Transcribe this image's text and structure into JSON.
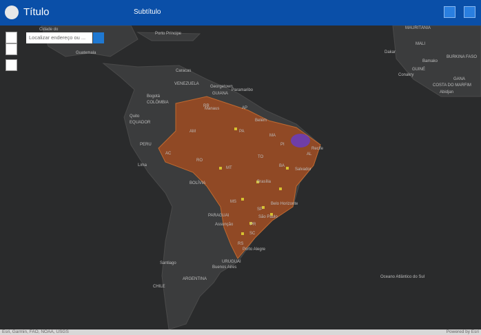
{
  "header": {
    "title": "Título",
    "subtitle": "Subtítulo"
  },
  "search": {
    "placeholder": "Localizar endereço ou ..."
  },
  "map_labels": [
    "Cidade do",
    "Porto Príncipe",
    "Guatemala",
    "Caracas",
    "VENEZUELA",
    "Georgetown",
    "GUIANA",
    "Paramaribo",
    "Bogotá",
    "COLÔMBIA",
    "Quito",
    "EQUADOR",
    "PERU",
    "Lima",
    "BOLÍVIA",
    "Manaus",
    "Belém",
    "Recife",
    "Salvador",
    "Brasília",
    "Belo Horizonte",
    "São Paulo",
    "Porto Alegre",
    "Assunção",
    "PARAGUAI",
    "Santiago",
    "CHILE",
    "Buenos Aires",
    "ARGENTINA",
    "URUGUAI",
    "Oceano Atlântico do Sul",
    "MAURITÂNIA",
    "MALI",
    "Dakar",
    "Bamako",
    "BURKINA FASO",
    "GUINÉ",
    "Conakry",
    "COSTA DO MARFIM",
    "GANA",
    "Abidjan",
    "RR",
    "AP",
    "AM",
    "PA",
    "MA",
    "AC",
    "RO",
    "MT",
    "TO",
    "BA",
    "PI",
    "AL",
    "MS",
    "SP",
    "PR",
    "SC",
    "RS"
  ],
  "footer": {
    "attribution": "Esri, Garmin, FAO, NOAA, USGS",
    "powered": "Powered by Esri"
  }
}
